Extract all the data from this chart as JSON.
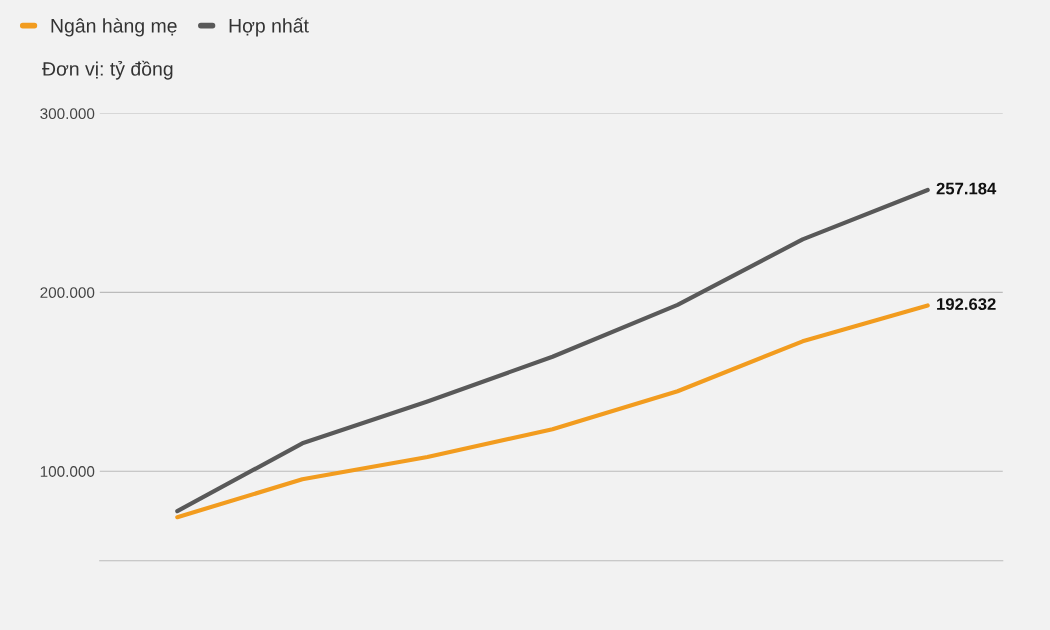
{
  "chart_data": {
    "type": "line",
    "ylabel": "Đơn vị: tỷ đồng",
    "categories": [
      null,
      null,
      null,
      null,
      null,
      null,
      null
    ],
    "series": [
      {
        "name": "Ngân hàng mẹ",
        "color": "#f29c1f",
        "values": [
          74300,
          95500,
          108000,
          123500,
          144700,
          172600,
          192632
        ],
        "value_labels": [
          null,
          null,
          null,
          null,
          null,
          null,
          "192.632"
        ]
      },
      {
        "name": "Hợp nhất",
        "color": "#595959",
        "values": [
          77700,
          115600,
          139000,
          164000,
          193000,
          229600,
          257184
        ],
        "value_labels": [
          null,
          null,
          null,
          null,
          null,
          null,
          "257.184"
        ]
      }
    ],
    "ylim": [
      50000,
      300000
    ],
    "yticks": [
      {
        "value": 100000,
        "label": "100.000"
      },
      {
        "value": 200000,
        "label": "200.000"
      },
      {
        "value": 300000,
        "label": "300.000"
      }
    ],
    "grid": "y",
    "legend": "top left",
    "tick_labels": "y",
    "marker": "none",
    "line_style": "solid"
  }
}
